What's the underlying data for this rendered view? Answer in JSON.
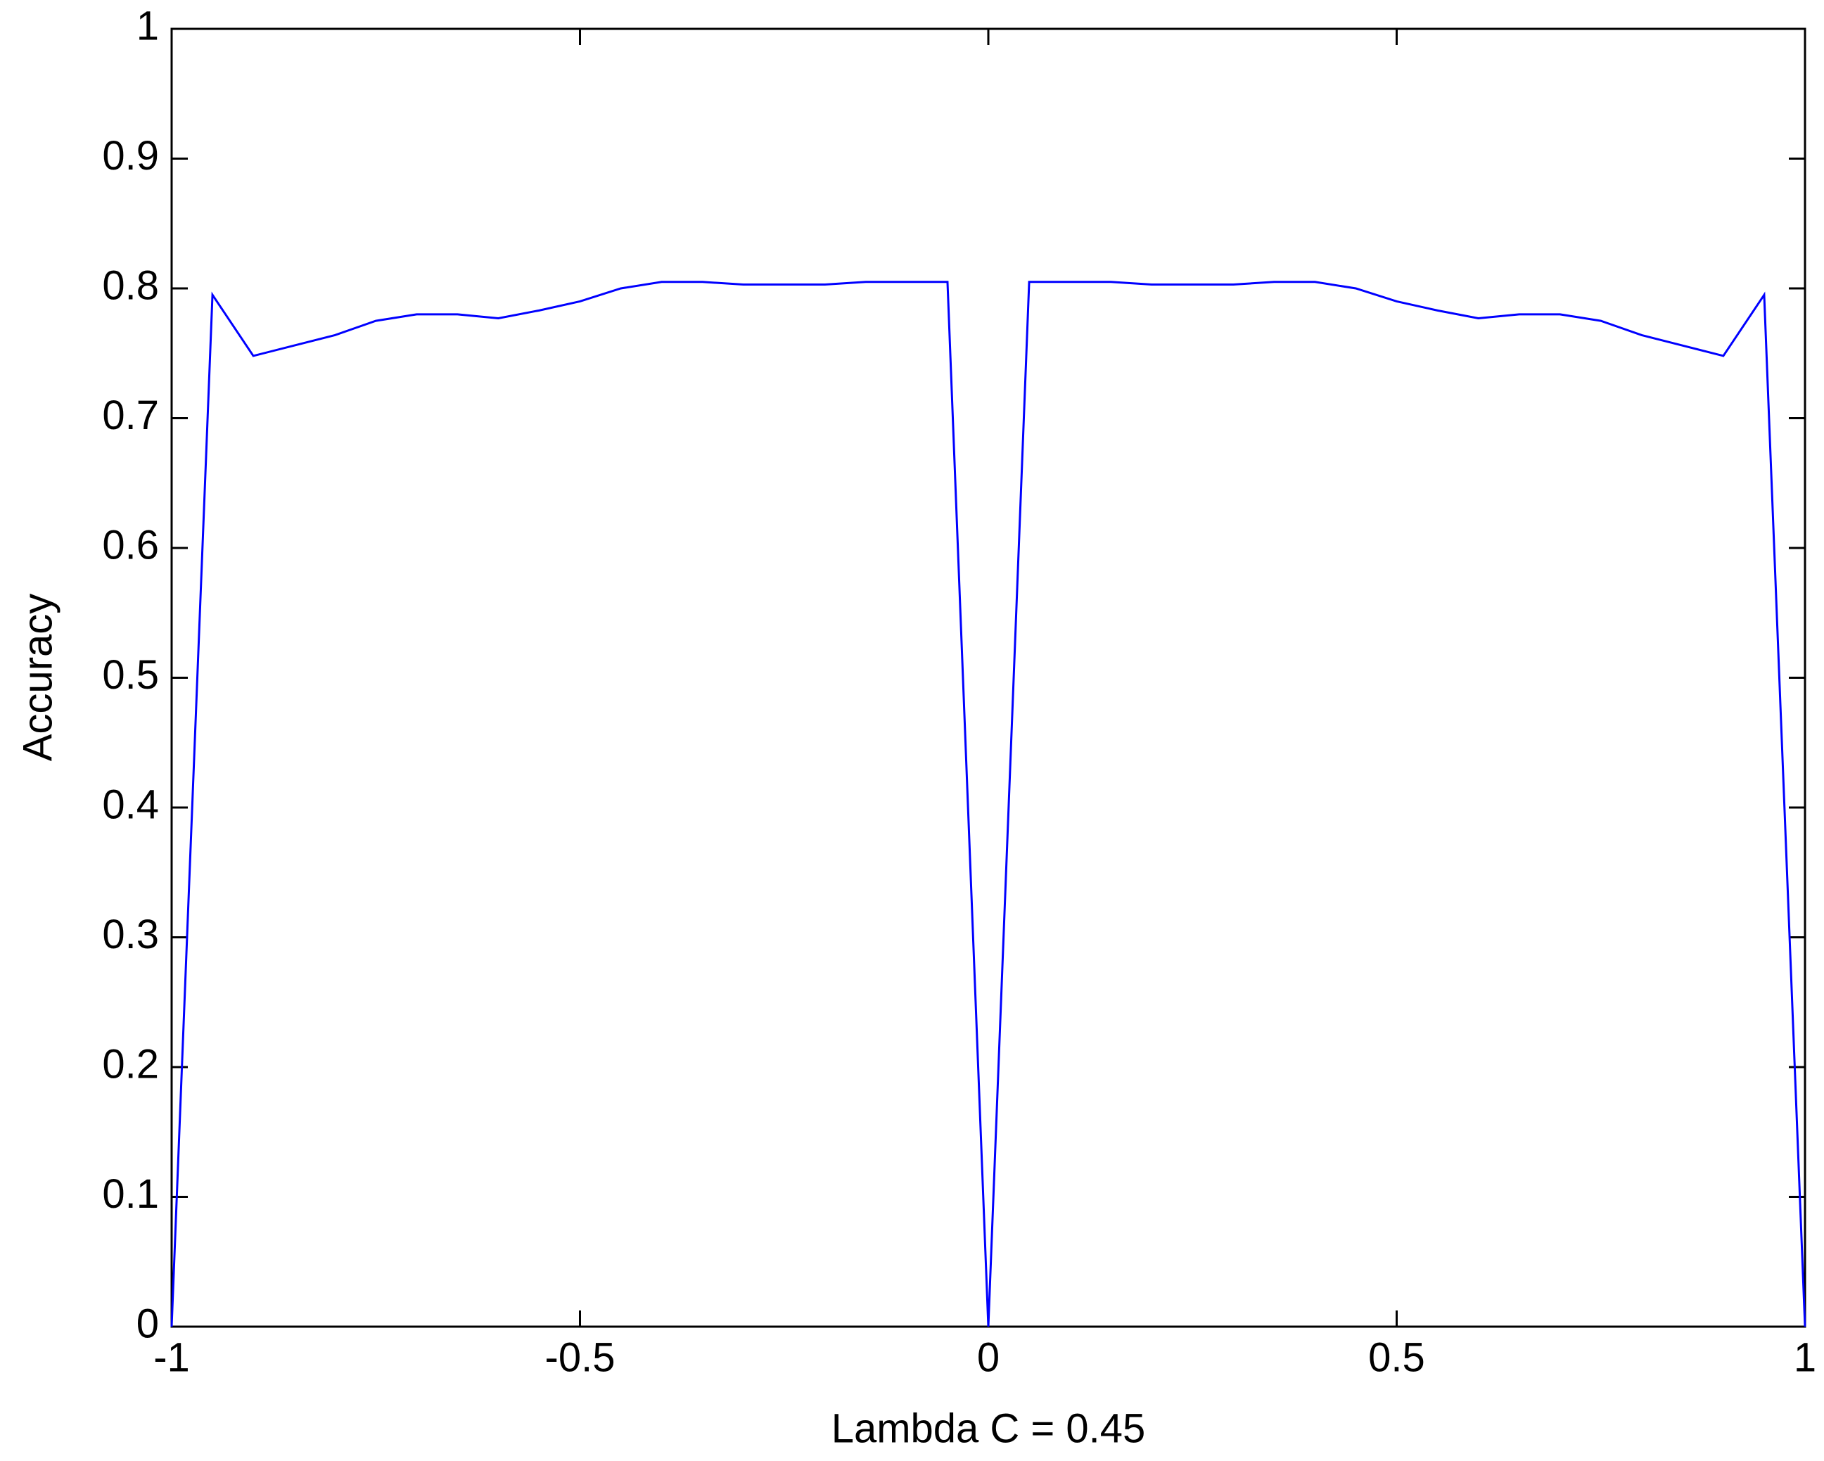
{
  "chart_data": {
    "type": "line",
    "x_label": "Lambda C = 0.45",
    "y_label": "Accuracy",
    "x": [
      -1,
      -0.95,
      -0.9,
      -0.85,
      -0.8,
      -0.75,
      -0.7,
      -0.65,
      -0.6,
      -0.55,
      -0.5,
      -0.45,
      -0.4,
      -0.35,
      -0.3,
      -0.25,
      -0.2,
      -0.15,
      -0.1,
      -0.05,
      0,
      0.05,
      0.1,
      0.15,
      0.2,
      0.25,
      0.3,
      0.35,
      0.4,
      0.45,
      0.5,
      0.55,
      0.6,
      0.65,
      0.7,
      0.75,
      0.8,
      0.85,
      0.9,
      0.95,
      1
    ],
    "series": [
      {
        "color": "#0000ff",
        "values": [
          0,
          0.795,
          0.748,
          0.756,
          0.764,
          0.775,
          0.78,
          0.78,
          0.777,
          0.783,
          0.79,
          0.8,
          0.805,
          0.805,
          0.803,
          0.803,
          0.803,
          0.805,
          0.805,
          0.805,
          0,
          0.805,
          0.805,
          0.805,
          0.803,
          0.803,
          0.803,
          0.805,
          0.805,
          0.8,
          0.79,
          0.783,
          0.777,
          0.78,
          0.78,
          0.775,
          0.764,
          0.756,
          0.748,
          0.795,
          0
        ]
      }
    ],
    "xlim": [
      -1,
      1
    ],
    "xticks": [
      -1,
      -0.5,
      0,
      0.5,
      1
    ],
    "ylim": [
      0,
      1
    ],
    "yticks": [
      0,
      0.1,
      0.2,
      0.3,
      0.4,
      0.5,
      0.6,
      0.7,
      0.8,
      0.9,
      1
    ]
  }
}
